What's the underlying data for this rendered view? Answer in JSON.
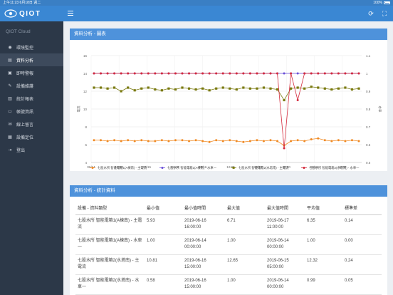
{
  "status_bar": {
    "time": "上午11:23",
    "date": "6月18日 週二",
    "battery": "100%"
  },
  "app": {
    "logo": "QIOT"
  },
  "sidebar": {
    "title": "QIOT Cloud",
    "items": [
      {
        "label": "環境監控",
        "icon": "eye-icon",
        "glyph": "◉"
      },
      {
        "label": "資料分析",
        "icon": "chart-icon",
        "glyph": "▤"
      },
      {
        "label": "即時警報",
        "icon": "alert-icon",
        "glyph": "▣"
      },
      {
        "label": "設備維護",
        "icon": "wrench-icon",
        "glyph": "✎"
      },
      {
        "label": "統計報表",
        "icon": "report-icon",
        "glyph": "▥"
      },
      {
        "label": "帳號資訊",
        "icon": "user-icon",
        "glyph": "▭"
      },
      {
        "label": "線上留言",
        "icon": "message-icon",
        "glyph": "✉"
      },
      {
        "label": "設備定位",
        "icon": "location-icon",
        "glyph": "▦"
      },
      {
        "label": "登出",
        "icon": "logout-icon",
        "glyph": "⇥"
      }
    ],
    "active_index": 1
  },
  "chart_panel": {
    "title": "資料分析 - 圖表"
  },
  "chart_data": {
    "type": "line",
    "x_labels": [
      "06/14",
      "12:00",
      "06/15",
      "12:00",
      "06/16",
      "12:00",
      "06/17",
      "12:00",
      "06/18",
      "12:00"
    ],
    "y_left": {
      "ticks": [
        4,
        6,
        8,
        10,
        12,
        14,
        16
      ],
      "label": "電流",
      "ylim": [
        4,
        16
      ]
    },
    "y_right": {
      "ticks": [
        0.5,
        0.6,
        0.7,
        0.8,
        0.9,
        1
      ],
      "top_label": "1.1",
      "label": "水車",
      "ylim": [
        0.5,
        1.1
      ]
    },
    "grid": true,
    "legend_position": "bottom",
    "series": [
      {
        "name": "七股水所 智能電箱1(A棟南) - 主電流",
        "color": "#f08a24",
        "marker": "circle",
        "axis": "left",
        "values": [
          6.5,
          6.5,
          6.4,
          6.5,
          6.4,
          6.5,
          6.4,
          6.5,
          6.4,
          6.4,
          6.5,
          6.4,
          6.5,
          6.5,
          6.4,
          6.5,
          6.4,
          6.3,
          6.5,
          6.4,
          6.5,
          6.4,
          6.3,
          6.4,
          6.5,
          6.4,
          6.5,
          6.4,
          5.9,
          6.4,
          6.5,
          6.4,
          6.6,
          6.7,
          6.5,
          6.4,
          6.5,
          6.4,
          6.5,
          6.4
        ]
      },
      {
        "name": "七股水所 智能電箱1(A棟南) - 水車一",
        "color": "#6a4fd8",
        "marker": "circle",
        "axis": "right",
        "values": [
          1.0,
          1.0,
          1.0,
          1.0,
          1.0,
          1.0,
          1.0,
          1.0,
          1.0,
          1.0,
          1.0,
          1.0,
          1.0,
          1.0,
          1.0,
          1.0,
          1.0,
          1.0,
          1.0,
          1.0,
          1.0,
          1.0,
          1.0,
          1.0,
          1.0,
          1.0,
          1.0,
          1.0,
          1.0,
          1.0,
          1.0,
          1.0,
          1.0,
          1.0,
          1.0,
          1.0,
          1.0,
          1.0,
          1.0,
          1.0
        ]
      },
      {
        "name": "七股水所 智能電箱2(水塔南) - 主電流",
        "color": "#7a7a10",
        "marker": "square",
        "axis": "left",
        "values": [
          12.4,
          12.4,
          12.3,
          12.4,
          12.0,
          12.4,
          12.1,
          12.3,
          12.4,
          12.2,
          12.1,
          12.3,
          12.2,
          12.4,
          12.3,
          12.2,
          12.3,
          12.1,
          12.3,
          12.4,
          12.3,
          12.2,
          12.4,
          12.3,
          12.3,
          12.4,
          12.3,
          12.2,
          11.0,
          12.3,
          12.4,
          12.3,
          12.5,
          12.4,
          12.3,
          12.2,
          12.3,
          12.4,
          12.2,
          12.3
        ]
      },
      {
        "name": "七股水所 智能電箱2(水塔南) - 水車一",
        "color": "#d42a3c",
        "marker": "circle",
        "axis": "right",
        "values": [
          1.0,
          1.0,
          1.0,
          1.0,
          1.0,
          1.0,
          1.0,
          1.0,
          1.0,
          1.0,
          1.0,
          1.0,
          1.0,
          1.0,
          1.0,
          1.0,
          1.0,
          1.0,
          1.0,
          1.0,
          1.0,
          1.0,
          1.0,
          1.0,
          1.0,
          1.0,
          1.0,
          1.0,
          0.58,
          1.0,
          0.85,
          1.0,
          1.0,
          1.0,
          1.0,
          1.0,
          1.0,
          1.0,
          1.0,
          1.0
        ]
      }
    ]
  },
  "stats_panel": {
    "title": "資料分析 - 統計資料",
    "headers": [
      "設備 - 資料類型",
      "最小值",
      "最小值時間",
      "最大值",
      "最大值時間",
      "平均值",
      "標準差"
    ],
    "rows": [
      {
        "name": "七股水所 智能電箱1(A棟南) - 主電流",
        "min": "5.93",
        "min_time": "2019-06-16 16:00:00",
        "max": "6.71",
        "max_time": "2019-06-17 11:00:00",
        "avg": "6.35",
        "std": "0.14"
      },
      {
        "name": "七股水所 智能電箱1(A棟南) - 水車一",
        "min": "1.00",
        "min_time": "2019-06-14 00:00:00",
        "max": "1.00",
        "max_time": "2019-06-14 00:00:00",
        "avg": "1.00",
        "std": "0.00"
      },
      {
        "name": "七股水所 智能電箱2(水塔南) - 主電流",
        "min": "10.81",
        "min_time": "2019-06-16 15:00:00",
        "max": "12.65",
        "max_time": "2019-06-15 05:00:00",
        "avg": "12.32",
        "std": "0.24"
      },
      {
        "name": "七股水所 智能電箱2(水塔南) - 水車一",
        "min": "0.58",
        "min_time": "2019-06-16 15:00:00",
        "max": "1.00",
        "max_time": "2019-06-14 00:00:00",
        "avg": "0.99",
        "std": "0.05"
      }
    ]
  }
}
